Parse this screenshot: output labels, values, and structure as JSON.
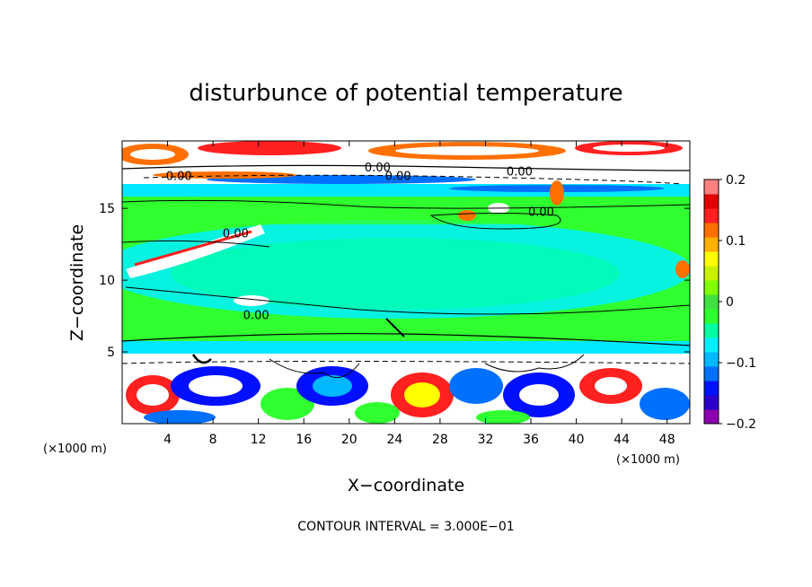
{
  "chart_data": {
    "type": "heatmap",
    "title": "disturbunce of potential temperature",
    "xlabel": "X−coordinate",
    "ylabel": "Z−coordinate",
    "x_unit": "(×1000 m)",
    "x_unit_right": "(×1000 m)",
    "xlim": [
      0,
      50
    ],
    "ylim": [
      0,
      19.7
    ],
    "x_ticks": [
      4,
      8,
      12,
      16,
      20,
      24,
      28,
      32,
      36,
      40,
      44,
      48
    ],
    "y_ticks": [
      5,
      10,
      15
    ],
    "colorbar": {
      "range": [
        -0.2,
        0.2
      ],
      "ticks": [
        {
          "value": 0.2,
          "label": "0.2"
        },
        {
          "value": 0.1,
          "label": "0.1"
        },
        {
          "value": 0,
          "label": "0"
        },
        {
          "value": -0.1,
          "label": "−0.1"
        },
        {
          "value": -0.2,
          "label": "−0.2"
        }
      ],
      "colors": [
        "#8b00b0",
        "#2a00c8",
        "#0010ff",
        "#0070ff",
        "#00b8ff",
        "#00f0ff",
        "#00ffa0",
        "#30ff30",
        "#40e040",
        "#80ff00",
        "#c8f000",
        "#ffff00",
        "#ffb000",
        "#ff7000",
        "#ff2020",
        "#e00000",
        "#ff8080"
      ]
    },
    "contour_labels": [
      {
        "x": 5.0,
        "y": 17.3,
        "text": "0.00"
      },
      {
        "x": 22.5,
        "y": 17.9,
        "text": "0.00"
      },
      {
        "x": 24.3,
        "y": 17.3,
        "text": "0.00"
      },
      {
        "x": 35.0,
        "y": 17.6,
        "text": "0.00"
      },
      {
        "x": 36.9,
        "y": 14.8,
        "text": "0.00"
      },
      {
        "x": 10.0,
        "y": 13.3,
        "text": "0.00"
      },
      {
        "x": 11.8,
        "y": 7.6,
        "text": "0.00"
      }
    ],
    "contour_interval": "CONTOUR INTERVAL = 3.000E−01"
  }
}
